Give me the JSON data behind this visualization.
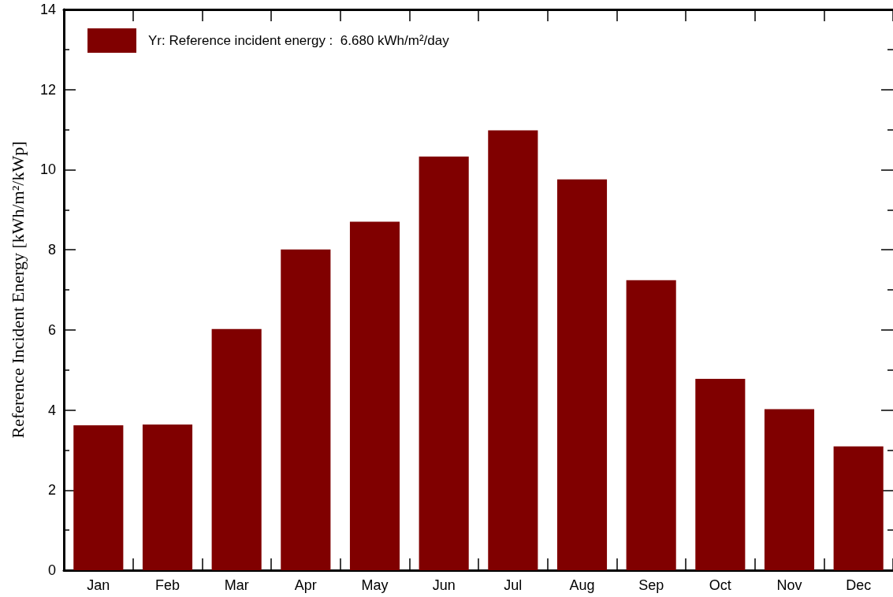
{
  "chart_data": {
    "type": "bar",
    "ylabel": "Reference Incident Energy [kWh/m²/kWp]",
    "categories": [
      "Jan",
      "Feb",
      "Mar",
      "Apr",
      "May",
      "Jun",
      "Jul",
      "Aug",
      "Sep",
      "Oct",
      "Nov",
      "Dec"
    ],
    "series": [
      {
        "name": "Yr: Reference incident energy :  6.680 kWh/m²/day",
        "color": "#800000",
        "values": [
          3.62,
          3.64,
          6.02,
          8.01,
          8.7,
          10.33,
          10.98,
          9.76,
          7.24,
          4.78,
          4.02,
          3.09
        ]
      }
    ],
    "ylim": [
      0,
      14
    ],
    "yticks": [
      0,
      {
        "value": 1,
        "label": null
      },
      2,
      {
        "value": 3,
        "label": null
      },
      4,
      {
        "value": 5,
        "label": null
      },
      6,
      {
        "value": 7,
        "label": null
      },
      8,
      {
        "value": 9,
        "label": null
      },
      10,
      {
        "value": 11,
        "label": null
      },
      12,
      {
        "value": 13,
        "label": null
      },
      14
    ],
    "legend": "top left"
  }
}
